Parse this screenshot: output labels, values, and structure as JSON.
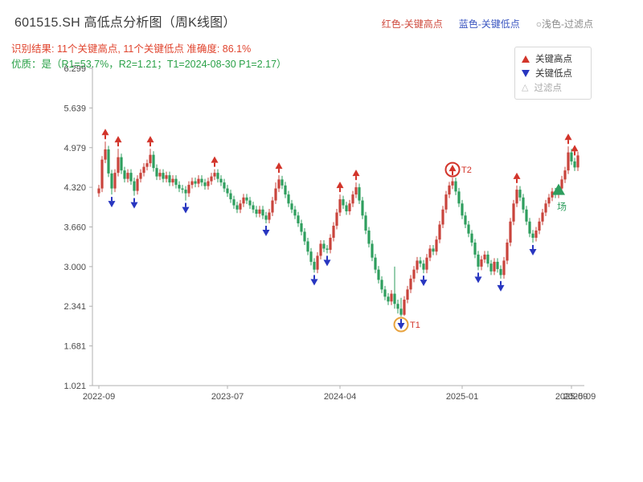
{
  "header": {
    "title": "601515.SH 高低点分析图（周K线图）",
    "legend_inline": [
      {
        "label": "红色-关键高点",
        "color": "#cf4a3e"
      },
      {
        "label": "蓝色-关键低点",
        "color": "#3a55c0"
      },
      {
        "label": "○浅色-过滤点",
        "color": "#8c8c8c"
      }
    ],
    "result_line": "识别结果: 11个关键高点, 11个关键低点  准确度: 86.1%",
    "result_color": "#e0442e",
    "quality_line": "优质：是（R1=53.7%，R2=1.21；T1=2024-08-30 P1=2.17）",
    "quality_color": "#2aa148"
  },
  "legend_box": {
    "items": [
      {
        "label": "关键高点",
        "marker": "triangle-up",
        "color": "#d2342a"
      },
      {
        "label": "关键低点",
        "marker": "triangle-down",
        "color": "#2836c0"
      },
      {
        "label": "过滤点",
        "marker": "triangle-open",
        "color": "#b9b9b9"
      }
    ]
  },
  "chart_data": {
    "type": "candlestick",
    "title": "601515.SH 高低点分析图（周K线图）",
    "ylim": [
      1.021,
      6.299
    ],
    "y_ticks": [
      "6.299",
      "5.639",
      "4.979",
      "4.320",
      "3.660",
      "3.000",
      "2.341",
      "1.681",
      "1.021"
    ],
    "x_ticks": [
      {
        "index": 0,
        "label": "2022-09"
      },
      {
        "index": 40,
        "label": "2023-07"
      },
      {
        "index": 75,
        "label": "2024-04"
      },
      {
        "index": 113,
        "label": "2025-01"
      },
      {
        "index": 147,
        "label": "2025-09"
      }
    ],
    "x_end_label": {
      "index": 150,
      "label": "2025-09"
    },
    "grid": false,
    "legend_position": "upper-right",
    "up_color": "#c9443c",
    "down_color": "#2e9e5e",
    "high_marker_color": "#d2342a",
    "low_marker_color": "#2836c0",
    "axis_color": "#b0b0b0",
    "tick_label_color": "#4a4a4a",
    "candles": [
      [
        4.22,
        4.36,
        4.16,
        4.3
      ],
      [
        4.3,
        4.84,
        4.24,
        4.78
      ],
      [
        4.78,
        5.08,
        4.72,
        4.95
      ],
      [
        4.95,
        5.01,
        4.49,
        4.55
      ],
      [
        4.55,
        4.61,
        4.2,
        4.3
      ],
      [
        4.3,
        4.62,
        4.24,
        4.56
      ],
      [
        4.56,
        4.96,
        4.5,
        4.82
      ],
      [
        4.82,
        4.88,
        4.54,
        4.6
      ],
      [
        4.6,
        4.66,
        4.4,
        4.46
      ],
      [
        4.46,
        4.62,
        4.4,
        4.56
      ],
      [
        4.56,
        4.62,
        4.36,
        4.42
      ],
      [
        4.42,
        4.48,
        4.18,
        4.26
      ],
      [
        4.26,
        4.52,
        4.2,
        4.46
      ],
      [
        4.46,
        4.62,
        4.4,
        4.56
      ],
      [
        4.56,
        4.72,
        4.5,
        4.66
      ],
      [
        4.66,
        4.78,
        4.6,
        4.72
      ],
      [
        4.72,
        4.96,
        4.66,
        4.86
      ],
      [
        4.86,
        4.92,
        4.58,
        4.64
      ],
      [
        4.64,
        4.7,
        4.44,
        4.5
      ],
      [
        4.5,
        4.62,
        4.44,
        4.56
      ],
      [
        4.56,
        4.62,
        4.4,
        4.46
      ],
      [
        4.46,
        4.58,
        4.4,
        4.52
      ],
      [
        4.52,
        4.58,
        4.34,
        4.4
      ],
      [
        4.4,
        4.52,
        4.34,
        4.46
      ],
      [
        4.46,
        4.52,
        4.3,
        4.36
      ],
      [
        4.36,
        4.42,
        4.24,
        4.3
      ],
      [
        4.3,
        4.36,
        4.22,
        4.28
      ],
      [
        4.28,
        4.34,
        4.1,
        4.22
      ],
      [
        4.22,
        4.42,
        4.16,
        4.36
      ],
      [
        4.36,
        4.48,
        4.3,
        4.42
      ],
      [
        4.42,
        4.48,
        4.32,
        4.38
      ],
      [
        4.38,
        4.52,
        4.32,
        4.46
      ],
      [
        4.46,
        4.52,
        4.34,
        4.4
      ],
      [
        4.4,
        4.46,
        4.28,
        4.34
      ],
      [
        4.34,
        4.48,
        4.28,
        4.42
      ],
      [
        4.42,
        4.56,
        4.36,
        4.5
      ],
      [
        4.5,
        4.62,
        4.44,
        4.56
      ],
      [
        4.56,
        4.62,
        4.4,
        4.46
      ],
      [
        4.46,
        4.52,
        4.34,
        4.4
      ],
      [
        4.4,
        4.46,
        4.24,
        4.3
      ],
      [
        4.3,
        4.36,
        4.16,
        4.22
      ],
      [
        4.22,
        4.28,
        4.06,
        4.12
      ],
      [
        4.12,
        4.18,
        3.96,
        4.02
      ],
      [
        4.02,
        4.08,
        3.89,
        3.95
      ],
      [
        3.95,
        4.11,
        3.89,
        4.05
      ],
      [
        4.05,
        4.21,
        3.99,
        4.15
      ],
      [
        4.15,
        4.21,
        4.04,
        4.1
      ],
      [
        4.1,
        4.16,
        3.96,
        4.02
      ],
      [
        4.02,
        4.08,
        3.89,
        3.95
      ],
      [
        3.95,
        4.01,
        3.82,
        3.88
      ],
      [
        3.88,
        4.01,
        3.82,
        3.95
      ],
      [
        3.95,
        4.01,
        3.79,
        3.85
      ],
      [
        3.85,
        3.91,
        3.72,
        3.78
      ],
      [
        3.78,
        3.96,
        3.72,
        3.9
      ],
      [
        3.9,
        4.16,
        3.84,
        4.1
      ],
      [
        4.1,
        4.4,
        4.04,
        4.3
      ],
      [
        4.3,
        4.52,
        4.24,
        4.45
      ],
      [
        4.45,
        4.51,
        4.29,
        4.35
      ],
      [
        4.35,
        4.41,
        4.14,
        4.2
      ],
      [
        4.2,
        4.26,
        3.99,
        4.05
      ],
      [
        4.05,
        4.11,
        3.89,
        3.95
      ],
      [
        3.95,
        4.01,
        3.79,
        3.85
      ],
      [
        3.85,
        3.91,
        3.66,
        3.72
      ],
      [
        3.72,
        3.78,
        3.52,
        3.58
      ],
      [
        3.58,
        3.64,
        3.36,
        3.42
      ],
      [
        3.42,
        3.48,
        3.19,
        3.25
      ],
      [
        3.25,
        3.31,
        3.02,
        3.08
      ],
      [
        3.08,
        3.14,
        2.9,
        2.95
      ],
      [
        2.95,
        3.24,
        2.89,
        3.18
      ],
      [
        3.18,
        3.44,
        3.12,
        3.38
      ],
      [
        3.38,
        3.44,
        3.24,
        3.3
      ],
      [
        3.3,
        3.36,
        3.22,
        3.28
      ],
      [
        3.28,
        3.54,
        3.22,
        3.48
      ],
      [
        3.48,
        3.74,
        3.42,
        3.68
      ],
      [
        3.68,
        3.96,
        3.62,
        3.9
      ],
      [
        3.9,
        4.2,
        3.84,
        4.12
      ],
      [
        4.12,
        4.18,
        3.96,
        4.02
      ],
      [
        4.02,
        4.08,
        3.86,
        3.92
      ],
      [
        3.92,
        4.11,
        3.86,
        4.05
      ],
      [
        4.05,
        4.26,
        3.99,
        4.2
      ],
      [
        4.2,
        4.4,
        4.14,
        4.32
      ],
      [
        4.32,
        4.38,
        4.04,
        4.1
      ],
      [
        4.1,
        4.16,
        3.79,
        3.85
      ],
      [
        3.85,
        3.91,
        3.54,
        3.6
      ],
      [
        3.6,
        3.66,
        3.32,
        3.38
      ],
      [
        3.38,
        3.44,
        3.09,
        3.15
      ],
      [
        3.15,
        3.21,
        2.89,
        2.95
      ],
      [
        2.95,
        3.01,
        2.72,
        2.78
      ],
      [
        2.78,
        2.84,
        2.56,
        2.62
      ],
      [
        2.62,
        2.68,
        2.44,
        2.5
      ],
      [
        2.5,
        2.56,
        2.36,
        2.42
      ],
      [
        2.42,
        2.61,
        2.36,
        2.55
      ],
      [
        2.55,
        3.0,
        2.3,
        2.38
      ],
      [
        2.38,
        2.45,
        2.22,
        2.3
      ],
      [
        2.3,
        2.48,
        2.17,
        2.2
      ],
      [
        2.2,
        2.51,
        2.18,
        2.45
      ],
      [
        2.45,
        2.68,
        2.39,
        2.62
      ],
      [
        2.62,
        2.86,
        2.56,
        2.8
      ],
      [
        2.8,
        3.01,
        2.74,
        2.95
      ],
      [
        2.95,
        3.16,
        2.89,
        3.1
      ],
      [
        3.1,
        3.16,
        2.99,
        3.05
      ],
      [
        3.05,
        3.11,
        2.89,
        2.95
      ],
      [
        2.95,
        3.21,
        2.89,
        3.15
      ],
      [
        3.15,
        3.36,
        3.09,
        3.3
      ],
      [
        3.3,
        3.36,
        3.19,
        3.25
      ],
      [
        3.25,
        3.51,
        3.19,
        3.45
      ],
      [
        3.45,
        3.76,
        3.39,
        3.7
      ],
      [
        3.7,
        4.01,
        3.64,
        3.95
      ],
      [
        3.95,
        4.26,
        3.89,
        4.2
      ],
      [
        4.2,
        4.41,
        4.14,
        4.35
      ],
      [
        4.35,
        4.48,
        4.29,
        4.42
      ],
      [
        4.42,
        4.48,
        4.19,
        4.25
      ],
      [
        4.25,
        4.31,
        3.99,
        4.05
      ],
      [
        4.05,
        4.11,
        3.79,
        3.85
      ],
      [
        3.85,
        3.91,
        3.64,
        3.7
      ],
      [
        3.7,
        3.76,
        3.49,
        3.55
      ],
      [
        3.55,
        3.61,
        3.34,
        3.4
      ],
      [
        3.4,
        3.46,
        3.14,
        3.2
      ],
      [
        3.2,
        3.26,
        2.94,
        3.0
      ],
      [
        3.0,
        3.18,
        2.94,
        3.12
      ],
      [
        3.12,
        3.26,
        3.06,
        3.2
      ],
      [
        3.2,
        3.26,
        2.99,
        3.05
      ],
      [
        3.05,
        3.11,
        2.86,
        2.92
      ],
      [
        2.92,
        3.14,
        2.86,
        3.08
      ],
      [
        3.08,
        3.14,
        2.9,
        2.96
      ],
      [
        2.96,
        3.02,
        2.8,
        2.86
      ],
      [
        2.86,
        3.16,
        2.8,
        3.1
      ],
      [
        3.1,
        3.46,
        3.04,
        3.4
      ],
      [
        3.4,
        3.81,
        3.34,
        3.75
      ],
      [
        3.75,
        4.11,
        3.69,
        4.05
      ],
      [
        4.05,
        4.35,
        3.99,
        4.28
      ],
      [
        4.28,
        4.34,
        4.09,
        4.15
      ],
      [
        4.15,
        4.21,
        3.89,
        3.95
      ],
      [
        3.95,
        4.01,
        3.69,
        3.75
      ],
      [
        3.75,
        3.81,
        3.49,
        3.55
      ],
      [
        3.55,
        3.61,
        3.4,
        3.48
      ],
      [
        3.48,
        3.66,
        3.42,
        3.6
      ],
      [
        3.6,
        3.81,
        3.54,
        3.75
      ],
      [
        3.75,
        3.96,
        3.69,
        3.9
      ],
      [
        3.9,
        4.11,
        3.84,
        4.05
      ],
      [
        4.05,
        4.21,
        3.99,
        4.15
      ],
      [
        4.15,
        4.31,
        4.09,
        4.25
      ],
      [
        4.25,
        4.31,
        4.14,
        4.2
      ],
      [
        4.2,
        4.36,
        4.14,
        4.3
      ],
      [
        4.3,
        4.51,
        4.24,
        4.45
      ],
      [
        4.45,
        4.66,
        4.39,
        4.6
      ],
      [
        4.6,
        5.0,
        4.54,
        4.9
      ],
      [
        4.9,
        4.96,
        4.69,
        4.75
      ],
      [
        4.75,
        4.81,
        4.59,
        4.65
      ],
      [
        4.65,
        4.91,
        4.59,
        4.85
      ]
    ],
    "key_highs": [
      {
        "index": 2,
        "price": 5.08
      },
      {
        "index": 6,
        "price": 4.96
      },
      {
        "index": 16,
        "price": 4.96
      },
      {
        "index": 36,
        "price": 4.62
      },
      {
        "index": 56,
        "price": 4.52
      },
      {
        "index": 75,
        "price": 4.2
      },
      {
        "index": 80,
        "price": 4.4
      },
      {
        "index": 110,
        "price": 4.48,
        "label": "T2"
      },
      {
        "index": 130,
        "price": 4.35
      },
      {
        "index": 146,
        "price": 5.0
      },
      {
        "index": 148,
        "price": 4.81
      }
    ],
    "key_lows": [
      {
        "index": 4,
        "price": 4.2
      },
      {
        "index": 11,
        "price": 4.18
      },
      {
        "index": 27,
        "price": 4.1
      },
      {
        "index": 52,
        "price": 3.72
      },
      {
        "index": 67,
        "price": 2.9
      },
      {
        "index": 71,
        "price": 3.22
      },
      {
        "index": 94,
        "price": 2.17,
        "label": "T1"
      },
      {
        "index": 101,
        "price": 2.89
      },
      {
        "index": 118,
        "price": 2.94
      },
      {
        "index": 125,
        "price": 2.8
      },
      {
        "index": 135,
        "price": 3.4
      }
    ],
    "circles": [
      {
        "index": 94,
        "price": 2.17,
        "side": "low",
        "color": "#e8a23c",
        "label": "T1",
        "label_color": "#d2342a"
      },
      {
        "index": 110,
        "price": 4.48,
        "side": "high",
        "color": "#d2342a",
        "label": "T2",
        "label_color": "#d2342a"
      }
    ],
    "entry_marker": {
      "index": 143,
      "price": 4.26,
      "label": "场",
      "color": "#2e9e5e"
    }
  }
}
